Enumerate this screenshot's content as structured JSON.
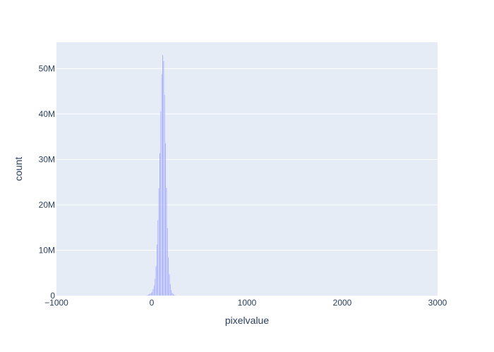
{
  "chart_data": {
    "type": "bar",
    "title": "",
    "xlabel": "pixelvalue",
    "ylabel": "count",
    "xlim": [
      -1000,
      3000
    ],
    "ylim": [
      0,
      55800000
    ],
    "x_ticks": [
      -1000,
      0,
      1000,
      2000,
      3000
    ],
    "x_tick_labels": [
      "−1000",
      "0",
      "1000",
      "2000",
      "3000"
    ],
    "y_ticks": [
      0,
      10000000,
      20000000,
      30000000,
      40000000,
      50000000
    ],
    "y_tick_labels": [
      "0",
      "10M",
      "20M",
      "30M",
      "40M",
      "50M"
    ],
    "grid": true,
    "bin_width": 10,
    "bins": [
      {
        "x": -60,
        "count": 100000
      },
      {
        "x": -50,
        "count": 200000
      },
      {
        "x": -40,
        "count": 300000
      },
      {
        "x": -30,
        "count": 400000
      },
      {
        "x": -20,
        "count": 500000
      },
      {
        "x": -10,
        "count": 700000
      },
      {
        "x": 0,
        "count": 900000
      },
      {
        "x": 10,
        "count": 1500000
      },
      {
        "x": 20,
        "count": 2300000
      },
      {
        "x": 30,
        "count": 3800000
      },
      {
        "x": 40,
        "count": 6500000
      },
      {
        "x": 50,
        "count": 11300000
      },
      {
        "x": 60,
        "count": 16700000
      },
      {
        "x": 70,
        "count": 23700000
      },
      {
        "x": 80,
        "count": 31400000
      },
      {
        "x": 90,
        "count": 40600000
      },
      {
        "x": 100,
        "count": 48800000
      },
      {
        "x": 110,
        "count": 53000000
      },
      {
        "x": 120,
        "count": 51700000
      },
      {
        "x": 130,
        "count": 44300000
      },
      {
        "x": 140,
        "count": 33600000
      },
      {
        "x": 150,
        "count": 23800000
      },
      {
        "x": 160,
        "count": 14900000
      },
      {
        "x": 170,
        "count": 8500000
      },
      {
        "x": 180,
        "count": 4800000
      },
      {
        "x": 190,
        "count": 2600000
      },
      {
        "x": 200,
        "count": 1300000
      },
      {
        "x": 210,
        "count": 700000
      },
      {
        "x": 220,
        "count": 400000
      },
      {
        "x": 230,
        "count": 250000
      },
      {
        "x": 240,
        "count": 150000
      },
      {
        "x": 250,
        "count": 100000
      },
      {
        "x": 260,
        "count": 60000
      },
      {
        "x": 270,
        "count": 40000
      },
      {
        "x": 280,
        "count": 25000
      },
      {
        "x": 290,
        "count": 15000
      }
    ],
    "bar_color": "#636efa",
    "plot_background": "#e5ecf6"
  }
}
